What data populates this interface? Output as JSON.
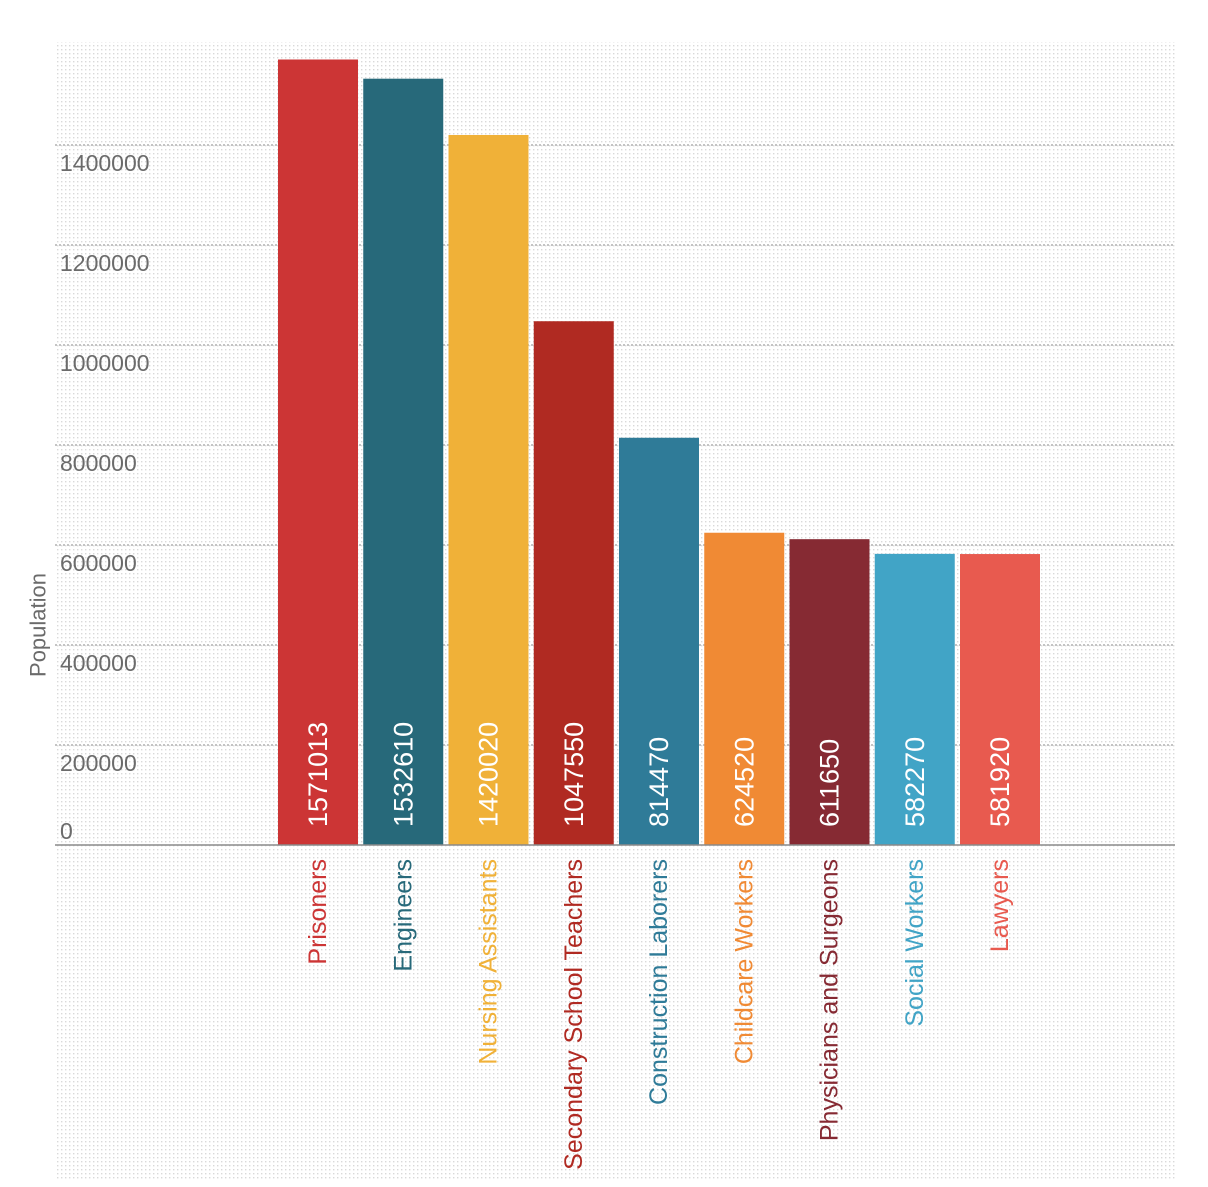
{
  "chart_data": {
    "type": "bar",
    "title": "",
    "xlabel": "",
    "ylabel": "Population",
    "ylim": [
      0,
      1600000
    ],
    "yticks": [
      0,
      200000,
      400000,
      600000,
      800000,
      1000000,
      1200000,
      1400000
    ],
    "ytick_labels": [
      "0",
      "200000",
      "400000",
      "600000",
      "800000",
      "1000000",
      "1200000",
      "1400000"
    ],
    "grid": true,
    "legend": "none",
    "categories": [
      "Prisoners",
      "Engineers",
      "Nursing Assistants",
      "Secondary School Teachers",
      "Construction Laborers",
      "Childcare Workers",
      "Physicians and Surgeons",
      "Social Workers",
      "Lawyers"
    ],
    "values": [
      1571013,
      1532610,
      1420020,
      1047550,
      814470,
      624520,
      611650,
      582270,
      581920
    ],
    "value_labels": [
      "1571013",
      "1532610",
      "1420020",
      "1047550",
      "814470",
      "624520",
      "611650",
      "582270",
      "581920"
    ],
    "colors": [
      "#cc3535",
      "#27697a",
      "#f0b138",
      "#b02a22",
      "#2f7b98",
      "#f08a34",
      "#862a33",
      "#41a4c6",
      "#e85a4f"
    ]
  },
  "style": {
    "axis_text_color": "#6b6b6b",
    "value_label_color": "#ffffff",
    "gridline_color": "#8a8a8a",
    "axis_color": "#8a8a8a",
    "background_dot_color": "#d9d9d9"
  }
}
